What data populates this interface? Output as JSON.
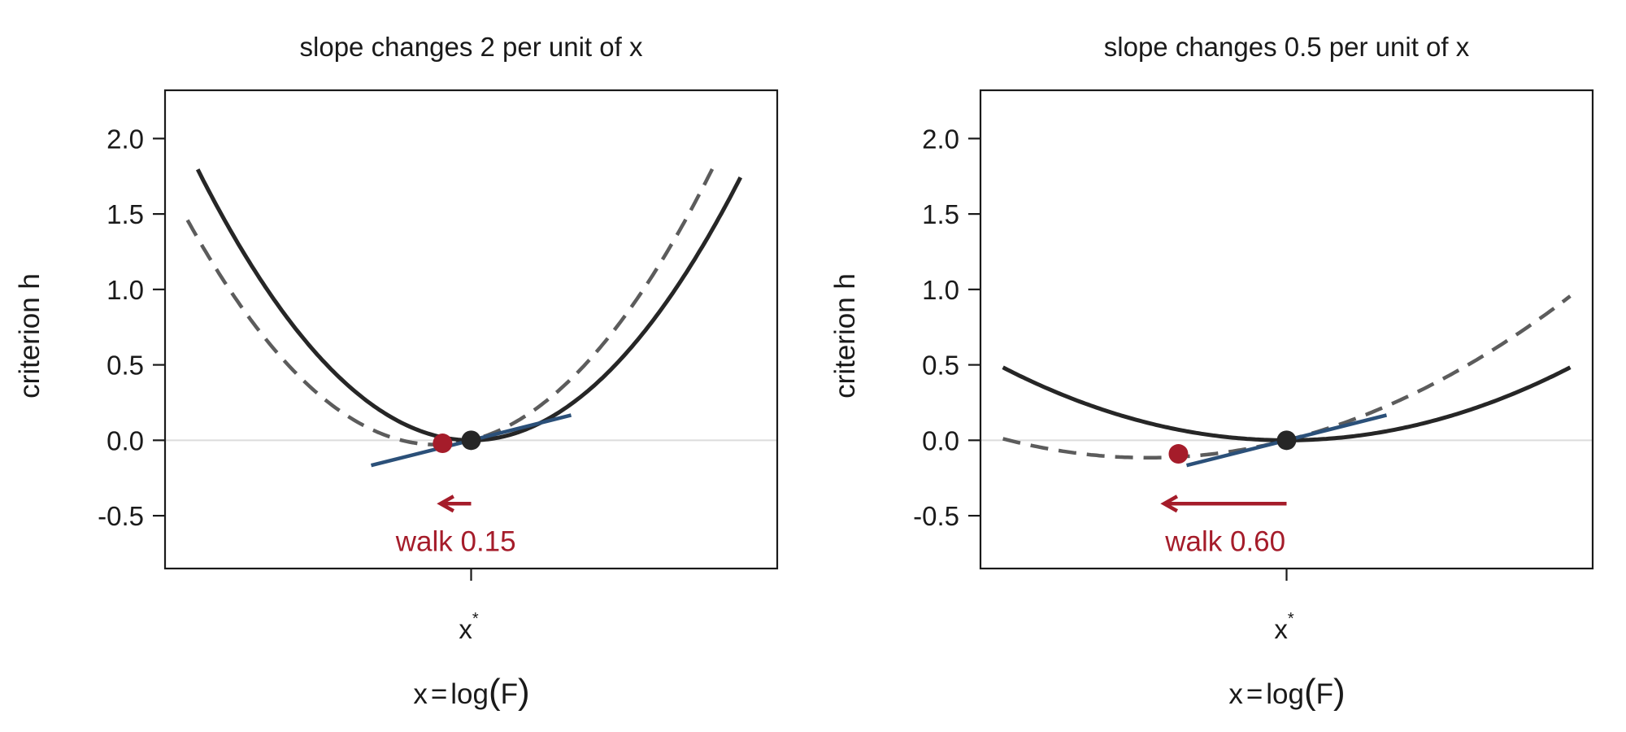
{
  "chart_data": [
    {
      "type": "line",
      "title": "slope changes 2 per unit of x",
      "ylabel": "criterion  h",
      "xlabel": {
        "lhs": "x",
        "eq": "=",
        "fn": "log",
        "open": "(",
        "arg": "F",
        "close": ")"
      },
      "x_tick": {
        "base": "x",
        "sup": "*"
      },
      "xlim": [
        -1.5,
        1.5
      ],
      "ylim": [
        -0.85,
        2.32
      ],
      "yticks": [
        -0.5,
        0.0,
        0.5,
        1.0,
        1.5,
        2.0
      ],
      "ytick_labels": [
        "-0.5",
        "0.0",
        "0.5",
        "1.0",
        "1.5",
        "2.0"
      ],
      "reference_line_y": 0,
      "curvature": 2,
      "tangent_slope": 0.34,
      "tangent_x_range": [
        -0.49,
        0.49
      ],
      "solid_curve_x_range": [
        -1.34,
        1.32
      ],
      "dashed_curve_x_range": [
        -1.39,
        1.2
      ],
      "optimum": {
        "x": 0,
        "y": 0
      },
      "shifted_point": {
        "x": -0.14,
        "y": -0.02
      },
      "walk": {
        "from_x": 0.0,
        "to_x": -0.15,
        "arrow_y": -0.42,
        "label": "walk 0.15",
        "label_y": -0.67
      },
      "colors": {
        "curve": "#262626",
        "dashed": "#5c5c5c",
        "tangent": "#2b5079",
        "shift": "#a51c2a",
        "zero_line": "#dcdcdc"
      }
    },
    {
      "type": "line",
      "title": "slope changes 0.5 per unit of x",
      "ylabel": "criterion  h",
      "xlabel": {
        "lhs": "x",
        "eq": "=",
        "fn": "log",
        "open": "(",
        "arg": "F",
        "close": ")"
      },
      "x_tick": {
        "base": "x",
        "sup": "*"
      },
      "xlim": [
        -1.5,
        1.5
      ],
      "ylim": [
        -0.85,
        2.32
      ],
      "yticks": [
        -0.5,
        0.0,
        0.5,
        1.0,
        1.5,
        2.0
      ],
      "ytick_labels": [
        "-0.5",
        "0.0",
        "0.5",
        "1.0",
        "1.5",
        "2.0"
      ],
      "reference_line_y": 0,
      "curvature": 0.5,
      "tangent_slope": 0.34,
      "tangent_x_range": [
        -0.49,
        0.49
      ],
      "solid_curve_x_range": [
        -1.39,
        1.39
      ],
      "dashed_curve_x_range": [
        -1.39,
        1.39
      ],
      "optimum": {
        "x": 0,
        "y": 0
      },
      "shifted_point": {
        "x": -0.53,
        "y": -0.09
      },
      "walk": {
        "from_x": 0.0,
        "to_x": -0.6,
        "arrow_y": -0.42,
        "label": "walk 0.60",
        "label_y": -0.67
      },
      "colors": {
        "curve": "#262626",
        "dashed": "#5c5c5c",
        "tangent": "#2b5079",
        "shift": "#a51c2a",
        "zero_line": "#dcdcdc"
      }
    }
  ]
}
